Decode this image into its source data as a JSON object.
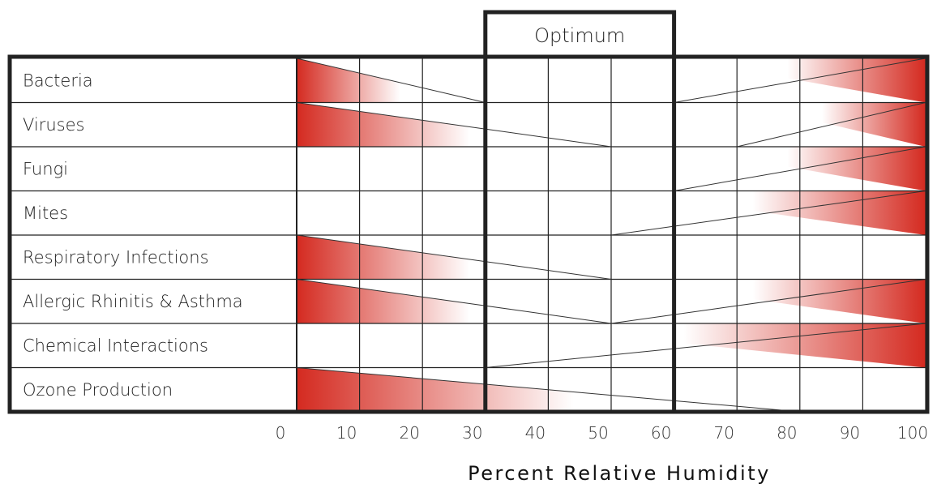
{
  "chart_data": {
    "type": "range-triangle-chart",
    "title": "",
    "xlabel": "Percent Relative Humidity",
    "ylabel": "",
    "xlim": [
      0,
      100
    ],
    "x_ticks": [
      0,
      10,
      20,
      30,
      40,
      50,
      60,
      70,
      80,
      90,
      100
    ],
    "optimum": {
      "label": "Optimum",
      "from": 30,
      "to": 60
    },
    "rows": [
      {
        "label": "Bacteria",
        "segments": [
          {
            "from": 0,
            "to": 30,
            "peak": "left"
          },
          {
            "from": 60,
            "to": 100,
            "peak": "right"
          }
        ]
      },
      {
        "label": "Viruses",
        "segments": [
          {
            "from": 0,
            "to": 50,
            "peak": "left"
          },
          {
            "from": 70,
            "to": 100,
            "peak": "right"
          }
        ]
      },
      {
        "label": "Fungi",
        "segments": [
          {
            "from": 60,
            "to": 100,
            "peak": "right"
          }
        ]
      },
      {
        "label": "Mites",
        "segments": [
          {
            "from": 50,
            "to": 100,
            "peak": "right"
          }
        ]
      },
      {
        "label": "Respiratory Infections",
        "segments": [
          {
            "from": 0,
            "to": 50,
            "peak": "left"
          }
        ]
      },
      {
        "label": "Allergic Rhinitis & Asthma",
        "segments": [
          {
            "from": 0,
            "to": 50,
            "peak": "left"
          },
          {
            "from": 50,
            "to": 100,
            "peak": "right"
          }
        ]
      },
      {
        "label": "Chemical Interactions",
        "segments": [
          {
            "from": 30,
            "to": 100,
            "peak": "right"
          }
        ]
      },
      {
        "label": "Ozone Production",
        "segments": [
          {
            "from": 0,
            "to": 80,
            "peak": "left"
          }
        ]
      }
    ],
    "colors": {
      "peak": "#d42a20",
      "fade": "#ffffff",
      "grid": "#222222",
      "frame": "#222222"
    }
  }
}
